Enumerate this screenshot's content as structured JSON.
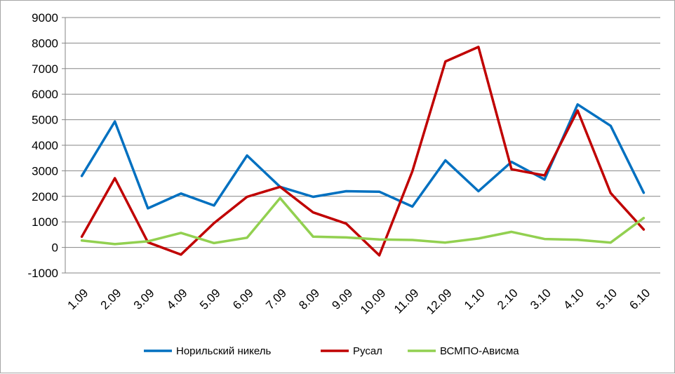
{
  "chart_data": {
    "type": "line",
    "title": "",
    "xlabel": "",
    "ylabel": "",
    "categories": [
      "1.09",
      "2.09",
      "3.09",
      "4.09",
      "5.09",
      "6.09",
      "7.09",
      "8.09",
      "9.09",
      "10.09",
      "11.09",
      "12.09",
      "1.10",
      "2.10",
      "3.10",
      "4.10",
      "5.10",
      "6.10"
    ],
    "ylim": [
      -1000,
      9000
    ],
    "yticks": [
      -1000,
      0,
      1000,
      2000,
      3000,
      4000,
      5000,
      6000,
      7000,
      8000,
      9000
    ],
    "ytick_labels": [
      "-1000",
      "0",
      "1000",
      "2000",
      "3000",
      "4000",
      "5000",
      "6000",
      "7000",
      "8000",
      "9000"
    ],
    "grid": true,
    "legend_position": "bottom",
    "series": [
      {
        "name": "Норильский никель",
        "color": "#0070c0",
        "values": [
          2800,
          4930,
          1530,
          2110,
          1640,
          3600,
          2370,
          1980,
          2200,
          2180,
          1600,
          3410,
          2200,
          3350,
          2660,
          5600,
          4760,
          2140
        ]
      },
      {
        "name": "Русал",
        "color": "#c00000",
        "values": [
          420,
          2710,
          200,
          -280,
          950,
          1980,
          2370,
          1370,
          930,
          -310,
          2980,
          7280,
          7850,
          3060,
          2820,
          5360,
          2130,
          700
        ]
      },
      {
        "name": "ВСМПО-Ависма",
        "color": "#92d050",
        "values": [
          270,
          130,
          240,
          570,
          170,
          380,
          1930,
          420,
          390,
          310,
          290,
          190,
          350,
          610,
          330,
          300,
          190,
          1150
        ]
      }
    ]
  }
}
